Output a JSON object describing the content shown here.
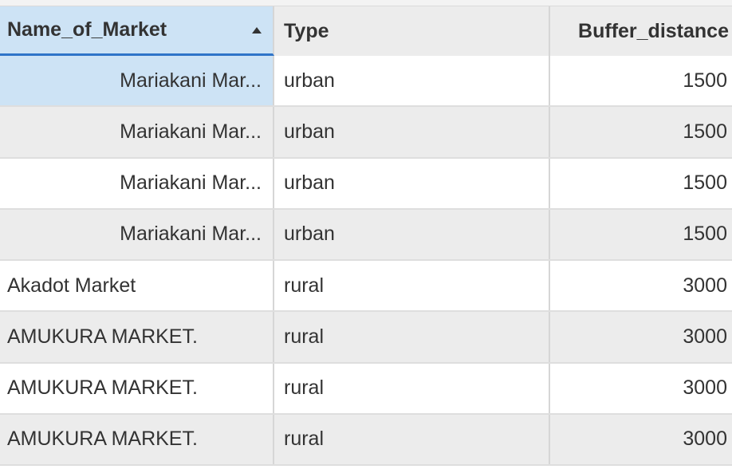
{
  "table": {
    "columns": [
      {
        "label": "Name_of_Market",
        "sorted": "ascending"
      },
      {
        "label": "Type"
      },
      {
        "label": "Buffer_distance"
      }
    ],
    "rows": [
      {
        "name": "Mariakani Mar...",
        "type": "urban",
        "buffer": "1500"
      },
      {
        "name": "Mariakani Mar...",
        "type": "urban",
        "buffer": "1500"
      },
      {
        "name": "Mariakani Mar...",
        "type": "urban",
        "buffer": "1500"
      },
      {
        "name": "Mariakani Mar...",
        "type": "urban",
        "buffer": "1500"
      },
      {
        "name": "Akadot Market",
        "type": "rural",
        "buffer": "3000"
      },
      {
        "name": "AMUKURA MARKET.",
        "type": "rural",
        "buffer": "3000"
      },
      {
        "name": "AMUKURA MARKET.",
        "type": "rural",
        "buffer": "3000"
      },
      {
        "name": "AMUKURA MARKET.",
        "type": "rural",
        "buffer": "3000"
      }
    ]
  },
  "colors": {
    "selected_cell": "#cde3f5",
    "sort_underline": "#2f74c8",
    "alternate_row": "#ececec"
  },
  "icons": {
    "sort": "sort-ascending-icon"
  }
}
